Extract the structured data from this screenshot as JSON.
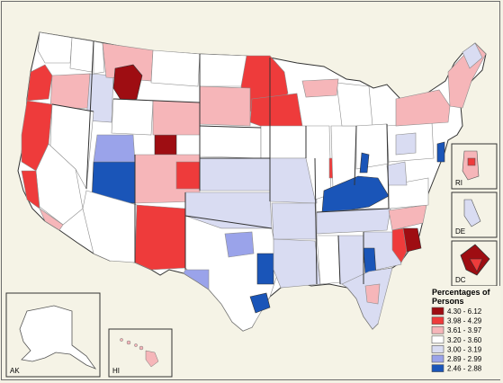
{
  "colors": {
    "background": "#f5f3e6",
    "border": "#555555",
    "state_line": "#333333",
    "district_line": "#8c8c8c"
  },
  "insets": {
    "ak": "AK",
    "hi": "HI",
    "ri": "RI",
    "de": "DE",
    "dc": "DC"
  },
  "legend": {
    "title_line1": "Percentages of",
    "title_line2": "Persons",
    "classes": [
      {
        "label": "4.30 - 6.12",
        "color": "#9e0d12"
      },
      {
        "label": "3.98 - 4.29",
        "color": "#ee3b3b"
      },
      {
        "label": "3.61 - 3.97",
        "color": "#f6b6b9"
      },
      {
        "label": "3.20 - 3.60",
        "color": "#ffffff"
      },
      {
        "label": "3.00 - 3.19",
        "color": "#d9dcf2"
      },
      {
        "label": "2.89 - 2.99",
        "color": "#9aa3ea"
      },
      {
        "label": "2.46 - 2.88",
        "color": "#1a55b8"
      }
    ]
  }
}
